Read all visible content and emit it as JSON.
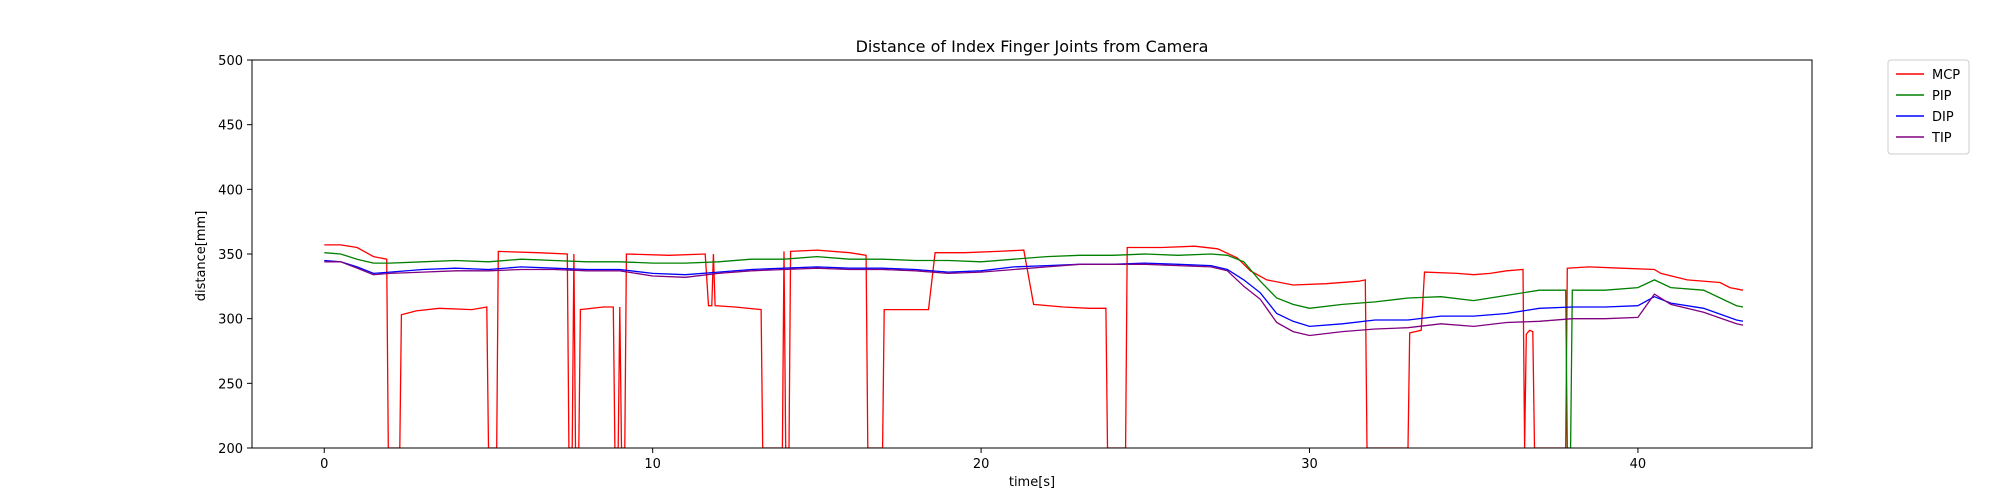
{
  "chart_data": {
    "type": "line",
    "title": "Distance of Index Finger Joints from Camera",
    "xlabel": "time[s]",
    "ylabel": "distance[mm]",
    "xlim": [
      -2.2,
      45.3
    ],
    "ylim": [
      200,
      500
    ],
    "xticks": [
      0,
      10,
      20,
      30,
      40
    ],
    "yticks": [
      200,
      250,
      300,
      350,
      400,
      450,
      500
    ],
    "grid": false,
    "legend_position": "outside-top-right",
    "series": [
      {
        "name": "MCP",
        "color": "#ff0000",
        "points": [
          [
            0,
            357
          ],
          [
            0.5,
            357
          ],
          [
            1.0,
            355
          ],
          [
            1.5,
            348
          ],
          [
            1.9,
            346
          ],
          [
            1.95,
            200
          ],
          [
            2.3,
            200
          ],
          [
            2.35,
            303
          ],
          [
            2.8,
            306
          ],
          [
            3.5,
            308
          ],
          [
            4.5,
            307
          ],
          [
            4.95,
            309
          ],
          [
            5.0,
            200
          ],
          [
            5.25,
            200
          ],
          [
            5.3,
            352
          ],
          [
            6.5,
            351
          ],
          [
            7.4,
            350
          ],
          [
            7.45,
            200
          ],
          [
            7.55,
            200
          ],
          [
            7.6,
            350
          ],
          [
            7.65,
            200
          ],
          [
            7.75,
            200
          ],
          [
            7.8,
            307
          ],
          [
            8.5,
            309
          ],
          [
            8.8,
            309
          ],
          [
            8.85,
            200
          ],
          [
            8.95,
            200
          ],
          [
            9.0,
            309
          ],
          [
            9.05,
            200
          ],
          [
            9.15,
            200
          ],
          [
            9.2,
            350
          ],
          [
            10.5,
            349
          ],
          [
            11.6,
            350
          ],
          [
            11.7,
            310
          ],
          [
            11.8,
            310
          ],
          [
            11.85,
            350
          ],
          [
            11.9,
            310
          ],
          [
            12.5,
            309
          ],
          [
            13.3,
            307
          ],
          [
            13.35,
            200
          ],
          [
            13.95,
            200
          ],
          [
            14.0,
            352
          ],
          [
            14.05,
            200
          ],
          [
            14.15,
            200
          ],
          [
            14.2,
            352
          ],
          [
            15.0,
            353
          ],
          [
            16.0,
            351
          ],
          [
            16.5,
            349
          ],
          [
            16.55,
            200
          ],
          [
            17.0,
            200
          ],
          [
            17.05,
            307
          ],
          [
            17.8,
            307
          ],
          [
            18.4,
            307
          ],
          [
            18.6,
            351
          ],
          [
            19.5,
            351
          ],
          [
            20.5,
            352
          ],
          [
            21.3,
            353
          ],
          [
            21.6,
            311
          ],
          [
            22.5,
            309
          ],
          [
            23.3,
            308
          ],
          [
            23.8,
            308
          ],
          [
            23.85,
            200
          ],
          [
            24.4,
            200
          ],
          [
            24.45,
            355
          ],
          [
            25.5,
            355
          ],
          [
            26.5,
            356
          ],
          [
            27.2,
            354
          ],
          [
            27.8,
            347
          ],
          [
            28.2,
            337
          ],
          [
            28.7,
            330
          ],
          [
            29.5,
            326
          ],
          [
            30.5,
            327
          ],
          [
            31.5,
            329
          ],
          [
            31.7,
            330
          ],
          [
            31.75,
            200
          ],
          [
            33.0,
            200
          ],
          [
            33.05,
            289
          ],
          [
            33.4,
            291
          ],
          [
            33.5,
            336
          ],
          [
            34.5,
            335
          ],
          [
            35.0,
            334
          ],
          [
            35.5,
            335
          ],
          [
            36.0,
            337
          ],
          [
            36.5,
            338
          ],
          [
            36.55,
            200
          ],
          [
            36.6,
            288
          ],
          [
            36.7,
            291
          ],
          [
            36.8,
            290
          ],
          [
            36.85,
            200
          ],
          [
            37.8,
            200
          ],
          [
            37.85,
            339
          ],
          [
            38.5,
            340
          ],
          [
            39.5,
            339
          ],
          [
            40.5,
            338
          ],
          [
            40.7,
            335
          ],
          [
            41.5,
            330
          ],
          [
            42.5,
            328
          ],
          [
            42.8,
            324
          ],
          [
            43.2,
            322
          ]
        ]
      },
      {
        "name": "PIP",
        "color": "#008000",
        "points": [
          [
            0,
            351
          ],
          [
            0.5,
            350
          ],
          [
            1.0,
            346
          ],
          [
            1.5,
            343
          ],
          [
            2.0,
            343
          ],
          [
            3.0,
            344
          ],
          [
            4.0,
            345
          ],
          [
            5.0,
            344
          ],
          [
            6.0,
            346
          ],
          [
            7.0,
            345
          ],
          [
            8.0,
            344
          ],
          [
            9.0,
            344
          ],
          [
            10.0,
            343
          ],
          [
            11.0,
            343
          ],
          [
            12.0,
            344
          ],
          [
            13.0,
            346
          ],
          [
            14.0,
            346
          ],
          [
            15.0,
            348
          ],
          [
            16.0,
            346
          ],
          [
            17.0,
            346
          ],
          [
            18.0,
            345
          ],
          [
            19.0,
            345
          ],
          [
            20.0,
            344
          ],
          [
            21.0,
            346
          ],
          [
            22.0,
            348
          ],
          [
            23.0,
            349
          ],
          [
            24.0,
            349
          ],
          [
            25.0,
            350
          ],
          [
            26.0,
            349
          ],
          [
            27.0,
            350
          ],
          [
            27.5,
            349
          ],
          [
            28.0,
            344
          ],
          [
            28.5,
            329
          ],
          [
            29.0,
            316
          ],
          [
            29.5,
            311
          ],
          [
            30.0,
            308
          ],
          [
            31.0,
            311
          ],
          [
            32.0,
            313
          ],
          [
            33.0,
            316
          ],
          [
            34.0,
            317
          ],
          [
            35.0,
            314
          ],
          [
            36.0,
            318
          ],
          [
            37.0,
            322
          ],
          [
            37.8,
            322
          ],
          [
            37.85,
            200
          ],
          [
            37.95,
            200
          ],
          [
            38.0,
            322
          ],
          [
            39.0,
            322
          ],
          [
            40.0,
            324
          ],
          [
            40.5,
            330
          ],
          [
            41.0,
            324
          ],
          [
            42.0,
            322
          ],
          [
            43.0,
            310
          ],
          [
            43.2,
            309
          ]
        ]
      },
      {
        "name": "DIP",
        "color": "#0000ff",
        "points": [
          [
            0,
            345
          ],
          [
            0.5,
            344
          ],
          [
            1.0,
            340
          ],
          [
            1.5,
            335
          ],
          [
            2.0,
            336
          ],
          [
            3.0,
            338
          ],
          [
            4.0,
            339
          ],
          [
            5.0,
            338
          ],
          [
            6.0,
            340
          ],
          [
            7.0,
            339
          ],
          [
            8.0,
            338
          ],
          [
            9.0,
            338
          ],
          [
            10.0,
            335
          ],
          [
            11.0,
            334
          ],
          [
            12.0,
            336
          ],
          [
            13.0,
            338
          ],
          [
            14.0,
            339
          ],
          [
            15.0,
            340
          ],
          [
            16.0,
            339
          ],
          [
            17.0,
            339
          ],
          [
            18.0,
            338
          ],
          [
            19.0,
            336
          ],
          [
            20.0,
            337
          ],
          [
            21.0,
            340
          ],
          [
            22.0,
            341
          ],
          [
            23.0,
            342
          ],
          [
            24.0,
            342
          ],
          [
            25.0,
            343
          ],
          [
            26.0,
            342
          ],
          [
            27.0,
            341
          ],
          [
            27.5,
            338
          ],
          [
            28.0,
            330
          ],
          [
            28.5,
            320
          ],
          [
            29.0,
            304
          ],
          [
            29.5,
            298
          ],
          [
            30.0,
            294
          ],
          [
            31.0,
            296
          ],
          [
            32.0,
            299
          ],
          [
            33.0,
            299
          ],
          [
            34.0,
            302
          ],
          [
            35.0,
            302
          ],
          [
            36.0,
            304
          ],
          [
            37.0,
            308
          ],
          [
            38.0,
            309
          ],
          [
            39.0,
            309
          ],
          [
            40.0,
            310
          ],
          [
            40.5,
            317
          ],
          [
            41.0,
            312
          ],
          [
            42.0,
            308
          ],
          [
            43.0,
            299
          ],
          [
            43.2,
            298
          ]
        ]
      },
      {
        "name": "TIP",
        "color": "#800080",
        "points": [
          [
            0,
            344
          ],
          [
            0.5,
            344
          ],
          [
            1.0,
            339
          ],
          [
            1.5,
            334
          ],
          [
            2.0,
            335
          ],
          [
            3.0,
            336
          ],
          [
            4.0,
            337
          ],
          [
            5.0,
            337
          ],
          [
            6.0,
            338
          ],
          [
            7.0,
            338
          ],
          [
            8.0,
            337
          ],
          [
            9.0,
            337
          ],
          [
            10.0,
            333
          ],
          [
            11.0,
            332
          ],
          [
            12.0,
            335
          ],
          [
            13.0,
            337
          ],
          [
            14.0,
            338
          ],
          [
            15.0,
            339
          ],
          [
            16.0,
            338
          ],
          [
            17.0,
            338
          ],
          [
            18.0,
            337
          ],
          [
            19.0,
            335
          ],
          [
            20.0,
            336
          ],
          [
            21.0,
            338
          ],
          [
            22.0,
            340
          ],
          [
            23.0,
            342
          ],
          [
            24.0,
            342
          ],
          [
            25.0,
            342
          ],
          [
            26.0,
            341
          ],
          [
            27.0,
            340
          ],
          [
            27.5,
            337
          ],
          [
            28.0,
            325
          ],
          [
            28.5,
            315
          ],
          [
            29.0,
            297
          ],
          [
            29.5,
            290
          ],
          [
            30.0,
            287
          ],
          [
            31.0,
            290
          ],
          [
            32.0,
            292
          ],
          [
            33.0,
            293
          ],
          [
            34.0,
            296
          ],
          [
            35.0,
            294
          ],
          [
            36.0,
            297
          ],
          [
            37.0,
            298
          ],
          [
            38.0,
            300
          ],
          [
            39.0,
            300
          ],
          [
            40.0,
            301
          ],
          [
            40.5,
            319
          ],
          [
            41.0,
            311
          ],
          [
            42.0,
            305
          ],
          [
            43.0,
            296
          ],
          [
            43.2,
            295
          ]
        ]
      }
    ]
  }
}
